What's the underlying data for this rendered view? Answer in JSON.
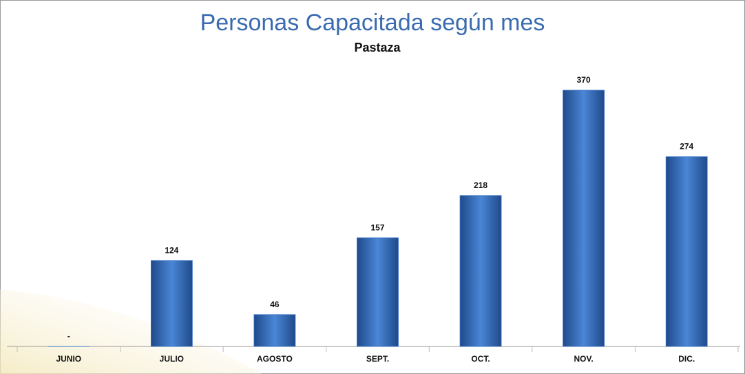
{
  "chart_data": {
    "type": "bar",
    "title": "Personas Capacitada según mes",
    "subtitle": "Pastaza",
    "categories": [
      "JUNIO",
      "JULIO",
      "AGOSTO",
      "SEPT.",
      "OCT.",
      "NOV.",
      "DIC."
    ],
    "values": [
      0,
      124,
      46,
      157,
      218,
      370,
      274
    ],
    "value_labels": [
      "-",
      "124",
      "46",
      "157",
      "218",
      "370",
      "274"
    ],
    "color": "#3a74c8"
  }
}
